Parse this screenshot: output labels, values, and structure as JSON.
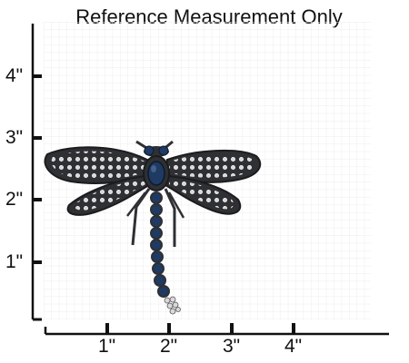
{
  "title": "Reference Measurement Only",
  "axes": {
    "x_ticks": [
      "1\"",
      "2\"",
      "3\"",
      "4\""
    ],
    "y_ticks": [
      "4\"",
      "3\"",
      "2\"",
      "1\""
    ]
  },
  "object": {
    "name": "dragonfly-brooch",
    "approx_width_in": 3.4,
    "approx_height_in": 2.9
  },
  "colors": {
    "grid": "#e6e6e6",
    "axis": "#111111",
    "metal": "#2f3033",
    "sapphire": "#1f3a63",
    "crystal": "#d9d9d9"
  }
}
